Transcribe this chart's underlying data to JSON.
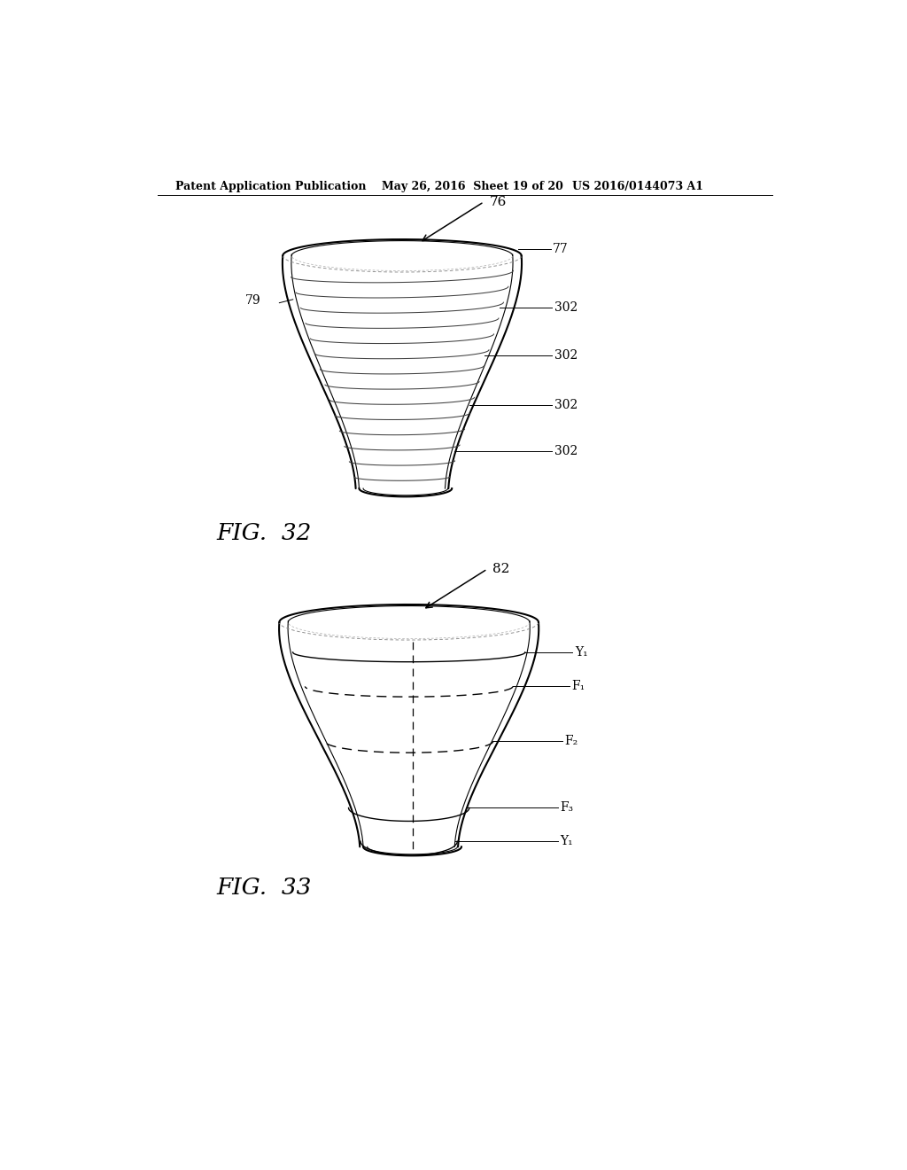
{
  "bg_color": "#ffffff",
  "header_left": "Patent Application Publication",
  "header_mid": "May 26, 2016  Sheet 19 of 20",
  "header_right": "US 2016/0144073 A1",
  "fig32_label": "FIG.  32",
  "fig33_label": "FIG.  33",
  "label_76": "76",
  "label_77": "77",
  "label_79": "79",
  "label_82": "82",
  "label_302": "302",
  "label_Y1_top": "Y₁",
  "label_Y1_bot": "Y₁",
  "label_F1": "F₁",
  "label_F2": "F₂",
  "label_F3": "F₃"
}
